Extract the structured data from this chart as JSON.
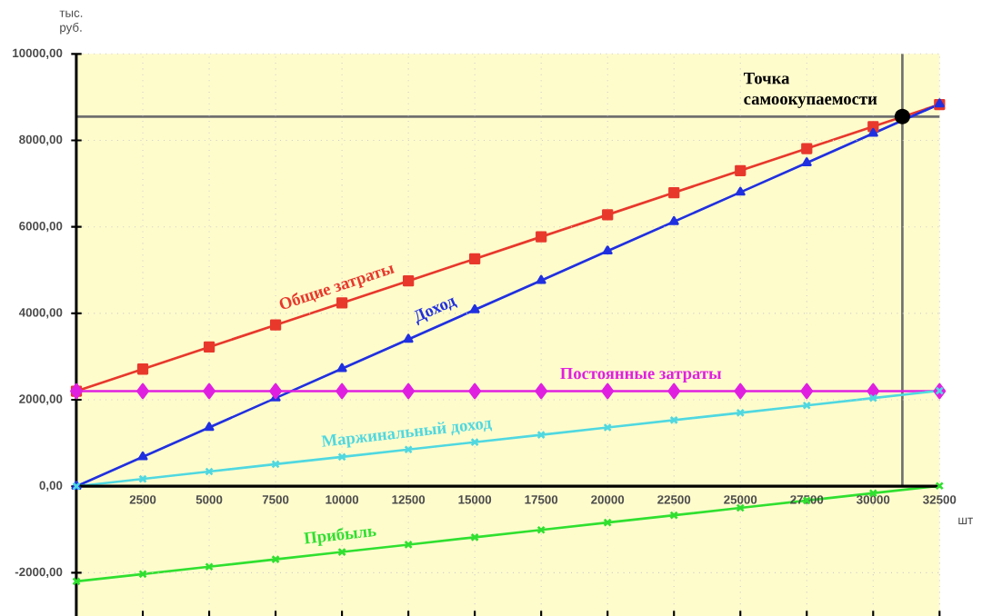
{
  "chart_data": {
    "type": "line",
    "xlabel": "шт",
    "ylabel": "тыс. руб.",
    "x": [
      0,
      2500,
      5000,
      7500,
      10000,
      12500,
      15000,
      17500,
      20000,
      22500,
      25000,
      27500,
      30000,
      32500
    ],
    "series": [
      {
        "name": "Общие затраты",
        "color": "#e8382c",
        "marker": "square",
        "values": [
          2200,
          2710,
          3220,
          3730,
          4240,
          4750,
          5260,
          5770,
          6280,
          6790,
          7300,
          7810,
          8320,
          8830
        ]
      },
      {
        "name": "Доход",
        "color": "#2030e0",
        "marker": "triangle",
        "values": [
          0,
          680,
          1360,
          2040,
          2720,
          3400,
          4080,
          4760,
          5440,
          6120,
          6800,
          7480,
          8160,
          8840
        ]
      },
      {
        "name": "Постоянные затраты",
        "color": "#e020e0",
        "marker": "diamond",
        "values": [
          2200,
          2200,
          2200,
          2200,
          2200,
          2200,
          2200,
          2200,
          2200,
          2200,
          2200,
          2200,
          2200,
          2200
        ]
      },
      {
        "name": "Маржинальный доход",
        "color": "#50d8e0",
        "marker": "cross",
        "values": [
          0,
          170,
          340,
          510,
          680,
          850,
          1020,
          1190,
          1360,
          1530,
          1700,
          1870,
          2040,
          2210
        ]
      },
      {
        "name": "Прибыль",
        "color": "#30e030",
        "marker": "cross",
        "values": [
          -2200,
          -2030,
          -1860,
          -1690,
          -1520,
          -1350,
          -1180,
          -1010,
          -840,
          -670,
          -500,
          -330,
          -160,
          10
        ]
      }
    ],
    "xlim": [
      0,
      32500
    ],
    "ylim": [
      -3000,
      10000
    ],
    "xticks": [
      2500,
      5000,
      7500,
      10000,
      12500,
      15000,
      17500,
      20000,
      22500,
      25000,
      27500,
      30000,
      32500
    ],
    "yticks": [
      {
        "value": -2000,
        "label": "-2000,00"
      },
      {
        "value": 0,
        "label": "0,00"
      },
      {
        "value": 2000,
        "label": "2000,00"
      },
      {
        "value": 4000,
        "label": "4000,00"
      },
      {
        "value": 6000,
        "label": "6000,00"
      },
      {
        "value": 8000,
        "label": "8000,00"
      },
      {
        "value": 10000,
        "label": "10000,00"
      }
    ],
    "grid": true,
    "ref_lines": [
      {
        "axis": "y",
        "value": 8550,
        "color": "#707070"
      },
      {
        "axis": "x",
        "value": 31100,
        "color": "#707070"
      }
    ],
    "annotations": [
      {
        "text": "Точка самоокупаемости",
        "x": 31100,
        "y": 8550
      }
    ]
  }
}
